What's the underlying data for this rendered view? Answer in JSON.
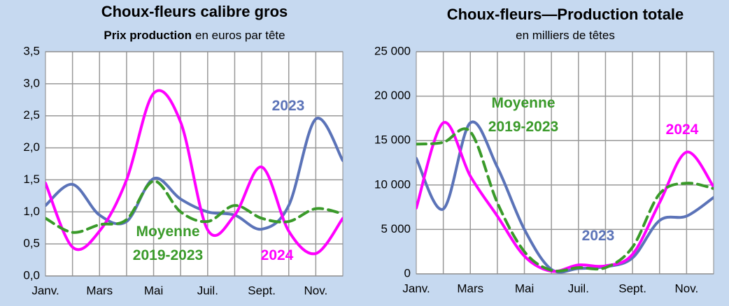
{
  "chart_data": [
    {
      "type": "line",
      "title": "Choux-fleurs calibre gros",
      "subtitle": [
        "Prix production",
        "en euros par tête"
      ],
      "categories": [
        "Janv.",
        null,
        "Mars",
        null,
        "Mai",
        null,
        "Juil.",
        null,
        "Sept.",
        null,
        "Nov.",
        null
      ],
      "ylim": [
        0,
        3.5
      ],
      "yticks": [
        {
          "value": 0,
          "label": "0,0"
        },
        {
          "value": 0.5,
          "label": "0,5"
        },
        {
          "value": 1,
          "label": "1,0"
        },
        {
          "value": 1.5,
          "label": "1,5"
        },
        {
          "value": 2,
          "label": "2,0"
        },
        {
          "value": 2.5,
          "label": "2,5"
        },
        {
          "value": 3,
          "label": "3,0"
        },
        {
          "value": 3.5,
          "label": "3,5"
        }
      ],
      "grid": true,
      "series": [
        {
          "name": "2023",
          "color": "#5b73b8",
          "values": [
            1.1,
            1.43,
            0.95,
            0.85,
            1.52,
            1.2,
            1.0,
            0.95,
            0.73,
            1.1,
            2.45,
            1.8
          ]
        },
        {
          "name": "2024",
          "color": "#ff00ff",
          "values": [
            1.45,
            0.45,
            0.7,
            1.5,
            2.85,
            2.4,
            0.72,
            0.95,
            1.7,
            0.7,
            0.35,
            0.9
          ]
        },
        {
          "name": "Moyenne 2019-2023",
          "color": "#3a9a2a",
          "dashed": true,
          "values": [
            0.9,
            0.68,
            0.8,
            0.88,
            1.48,
            1.0,
            0.85,
            1.1,
            0.9,
            0.85,
            1.05,
            0.97
          ]
        }
      ]
    },
    {
      "type": "line",
      "title": "Choux-fleurs—Production totale",
      "subtitle": [
        "en milliers de têtes"
      ],
      "categories": [
        "Janv.",
        null,
        "Mars",
        null,
        "Mai",
        null,
        "Juil.",
        null,
        "Sept.",
        null,
        "Nov.",
        null
      ],
      "ylim": [
        0,
        25000
      ],
      "yticks": [
        0,
        {
          "value": 5000,
          "label": "5 000"
        },
        {
          "value": 10000,
          "label": "10 000"
        },
        {
          "value": 15000,
          "label": "15 000"
        },
        {
          "value": 20000,
          "label": "20 000"
        },
        {
          "value": 25000,
          "label": "25 000"
        }
      ],
      "grid": true,
      "series": [
        {
          "name": "2023",
          "color": "#5b73b8",
          "values": [
            13000,
            7300,
            17000,
            12000,
            5000,
            500,
            600,
            800,
            1800,
            6000,
            6500,
            8600
          ]
        },
        {
          "name": "2024",
          "color": "#ff00ff",
          "values": [
            7400,
            17000,
            11000,
            6500,
            2000,
            300,
            1000,
            900,
            2200,
            8000,
            13700,
            9800
          ]
        },
        {
          "name": "Moyenne 2019-2023",
          "color": "#3a9a2a",
          "dashed": true,
          "values": [
            14600,
            14800,
            16000,
            8000,
            2500,
            400,
            700,
            700,
            3000,
            9000,
            10200,
            9600
          ]
        }
      ]
    }
  ]
}
